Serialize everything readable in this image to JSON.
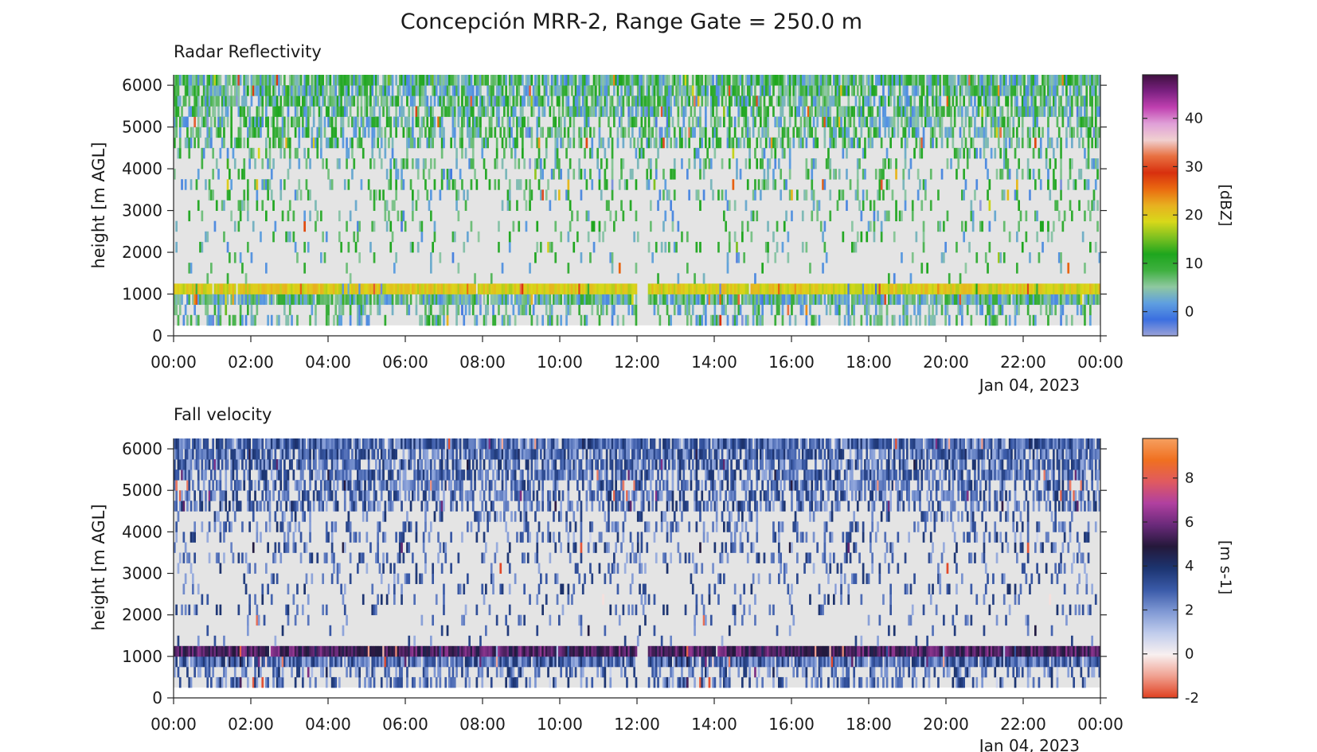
{
  "figure": {
    "title": "Concepción MRR-2, Range Gate = 250.0 m"
  },
  "chart_data": [
    {
      "type": "heatmap",
      "id": "reflectivity",
      "title": "Radar Reflectivity",
      "xlabel": "",
      "ylabel": "height [m AGL]",
      "x_ticks": [
        "00:00",
        "02:00",
        "04:00",
        "06:00",
        "08:00",
        "10:00",
        "12:00",
        "14:00",
        "16:00",
        "18:00",
        "20:00",
        "22:00",
        "00:00"
      ],
      "x_date_label": "Jan 04, 2023",
      "x_range_hours": [
        0,
        24
      ],
      "y_ticks": [
        0,
        1000,
        2000,
        3000,
        4000,
        5000,
        6000
      ],
      "ylim": [
        0,
        6250
      ],
      "colorbar": {
        "label": "[dBZ]",
        "ticks": [
          0,
          10,
          20,
          30,
          40
        ],
        "range": [
          -5,
          49
        ],
        "colors": [
          "#9aa2d8",
          "#3b6fe0",
          "#5f9fe0",
          "#8fc8a0",
          "#3fb040",
          "#1ea61e",
          "#7cc020",
          "#d8d81a",
          "#e8b020",
          "#ea6a10",
          "#d8300e",
          "#e87040",
          "#f0d0d0",
          "#e0a0d8",
          "#c040b0",
          "#7a2080",
          "#3f1040"
        ]
      },
      "layers": [
        {
          "name": "sparse-echoes",
          "height_m": [
            250,
            6250
          ],
          "background": "#e4e4e4"
        },
        {
          "name": "dense-upper-layer",
          "height_m": [
            4500,
            6250
          ],
          "dominant_dbz": [
            0,
            12
          ]
        },
        {
          "name": "bright-band",
          "height_m": [
            1000,
            1250
          ],
          "dominant_dbz": [
            17,
            22
          ]
        },
        {
          "name": "below-bright-band",
          "height_m": [
            750,
            1000
          ],
          "dominant_dbz": [
            0,
            10
          ]
        }
      ],
      "gaps_hours": [
        [
          12.0,
          12.3
        ]
      ]
    },
    {
      "type": "heatmap",
      "id": "fall-velocity",
      "title": "Fall velocity",
      "xlabel": "",
      "ylabel": "height [m AGL]",
      "x_ticks": [
        "00:00",
        "02:00",
        "04:00",
        "06:00",
        "08:00",
        "10:00",
        "12:00",
        "14:00",
        "16:00",
        "18:00",
        "20:00",
        "22:00",
        "00:00"
      ],
      "x_date_label": "Jan 04, 2023",
      "x_range_hours": [
        0,
        24
      ],
      "y_ticks": [
        0,
        1000,
        2000,
        3000,
        4000,
        5000,
        6000
      ],
      "ylim": [
        0,
        6250
      ],
      "colorbar": {
        "label": "[m s-1]",
        "ticks": [
          -2,
          0,
          2,
          4,
          6,
          8
        ],
        "range": [
          -2,
          9.8
        ],
        "colors": [
          "#e04020",
          "#f0a090",
          "#f8f0f0",
          "#c0ccec",
          "#7f98d4",
          "#3a5aa8",
          "#1c3470",
          "#24183a",
          "#6a2a7a",
          "#b040a0",
          "#e05a60",
          "#f07020",
          "#f6a060"
        ]
      },
      "layers": [
        {
          "name": "sparse-echoes",
          "height_m": [
            250,
            6250
          ],
          "background": "#e4e4e4"
        },
        {
          "name": "dense-upper-layer",
          "height_m": [
            4500,
            6250
          ],
          "dominant_ms": [
            1.5,
            4
          ]
        },
        {
          "name": "bright-band",
          "height_m": [
            1000,
            1250
          ],
          "dominant_ms": [
            4.5,
            6.5
          ]
        },
        {
          "name": "below-bright-band",
          "height_m": [
            750,
            1000
          ],
          "dominant_ms": [
            1.5,
            4
          ]
        }
      ],
      "gaps_hours": [
        [
          12.0,
          12.3
        ]
      ]
    }
  ]
}
